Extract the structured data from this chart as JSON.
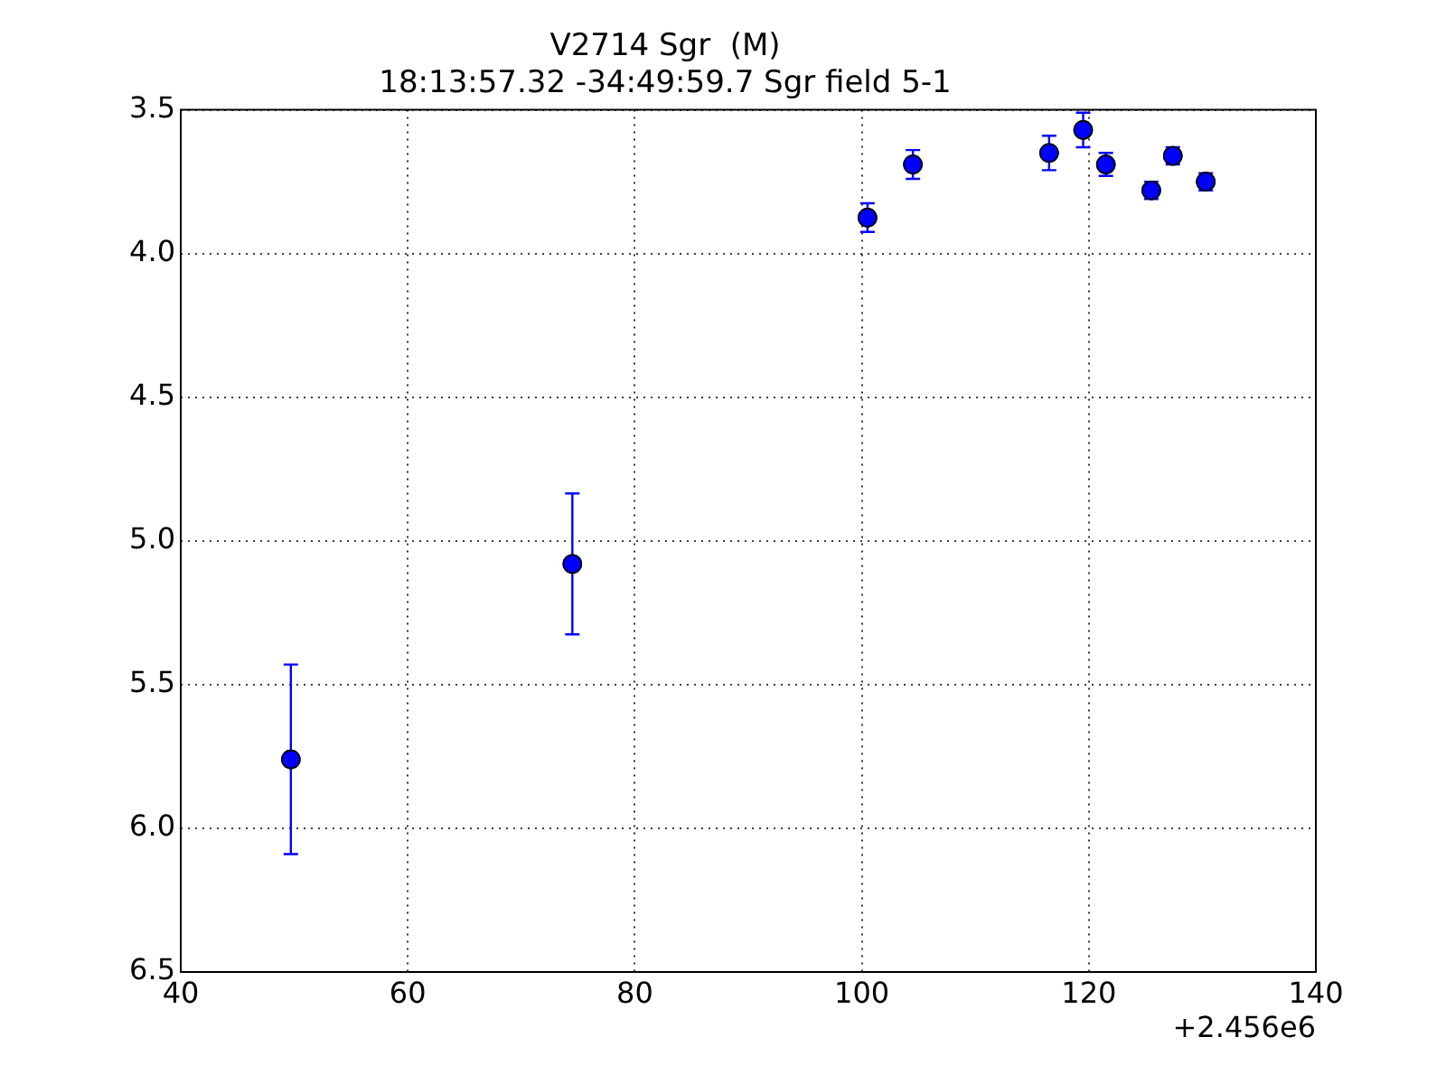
{
  "chart_data": {
    "type": "scatter",
    "title": "V2714 Sgr  (M)",
    "subtitle": "18:13:57.32 -34:49:59.7 Sgr field 5-1",
    "x": [
      49.7,
      74.5,
      100.5,
      104.5,
      116.5,
      119.5,
      121.5,
      125.5,
      127.4,
      130.3
    ],
    "series": [
      {
        "color": "#0000ff",
        "values": [
          5.76,
          5.08,
          3.875,
          3.69,
          3.65,
          3.57,
          3.69,
          3.78,
          3.66,
          3.75
        ],
        "errors": [
          0.33,
          0.245,
          0.05,
          0.05,
          0.06,
          0.06,
          0.04,
          0.03,
          0.03,
          0.03
        ]
      }
    ],
    "xlim": [
      40,
      140
    ],
    "xticks": [
      40,
      60,
      80,
      100,
      120,
      140
    ],
    "ylim": [
      6.5,
      3.5
    ],
    "yticks": [
      3.5,
      {
        "value": 4,
        "label": "4.0"
      },
      4.5,
      {
        "value": 5,
        "label": "5.0"
      },
      5.5,
      {
        "value": 6,
        "label": "6.0"
      },
      6.5
    ],
    "annotations": [
      "+2.456e6"
    ],
    "grid": true,
    "marker": "circle",
    "legend": false
  }
}
